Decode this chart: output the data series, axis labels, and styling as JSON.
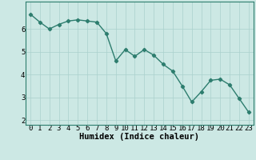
{
  "x": [
    0,
    1,
    2,
    3,
    4,
    5,
    6,
    7,
    8,
    9,
    10,
    11,
    12,
    13,
    14,
    15,
    16,
    17,
    18,
    19,
    20,
    21,
    22,
    23
  ],
  "y": [
    6.65,
    6.3,
    6.0,
    6.2,
    6.35,
    6.4,
    6.35,
    6.3,
    5.8,
    4.6,
    5.1,
    4.8,
    5.1,
    4.85,
    4.45,
    4.15,
    3.5,
    2.8,
    3.25,
    3.75,
    3.8,
    3.55,
    2.95,
    2.35
  ],
  "line_color": "#2d7d6e",
  "marker": "D",
  "marker_size": 2.2,
  "bg_color": "#cce8e4",
  "grid_color": "#aad0cc",
  "xlabel": "Humidex (Indice chaleur)",
  "xlabel_fontsize": 7.5,
  "xtick_labels": [
    "0",
    "1",
    "2",
    "3",
    "4",
    "5",
    "6",
    "7",
    "8",
    "9",
    "10",
    "11",
    "12",
    "13",
    "14",
    "15",
    "16",
    "17",
    "18",
    "19",
    "20",
    "21",
    "22",
    "23"
  ],
  "yticks": [
    2,
    3,
    4,
    5,
    6
  ],
  "ylim": [
    1.8,
    7.2
  ],
  "xlim": [
    -0.5,
    23.5
  ],
  "tick_fontsize": 6.5,
  "line_width": 1.0
}
